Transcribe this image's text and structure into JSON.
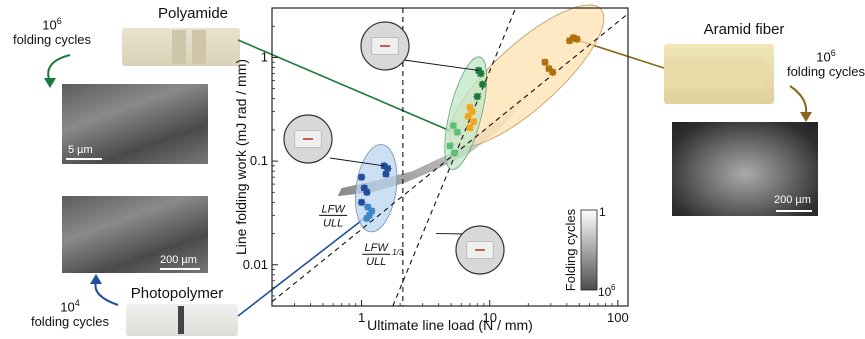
{
  "chart_data": {
    "type": "scatter",
    "xlabel": "Ultimate line load (N / mm)",
    "ylabel": "Line folding work (mJ rad / mm)",
    "xscale": "log",
    "yscale": "log",
    "xlim": [
      0.2,
      120
    ],
    "ylim": [
      0.004,
      3
    ],
    "xticks": [
      1,
      10,
      100
    ],
    "xtick_labels": [
      "1",
      "10",
      "100"
    ],
    "yticks": [
      0.01,
      0.1,
      1
    ],
    "ytick_labels": [
      "0.01",
      "0.1",
      "1"
    ],
    "vline_x": 2.1,
    "guide_lines": [
      {
        "label_num": "LFW",
        "label_den": "ULL",
        "label_exp": "",
        "exponent": 1,
        "through": [
          1.0,
          0.022
        ]
      },
      {
        "label_num": "LFW",
        "label_den": "ULL",
        "label_exp": "1/3",
        "exponent": 3,
        "through": [
          3.0,
          0.02
        ]
      }
    ],
    "series": [
      {
        "color": "#1f4e9c",
        "points": [
          [
            1.5,
            0.09
          ],
          [
            1.6,
            0.085
          ],
          [
            1.55,
            0.075
          ],
          [
            1.0,
            0.07
          ],
          [
            1.05,
            0.055
          ],
          [
            1.1,
            0.05
          ],
          [
            1.0,
            0.04
          ]
        ]
      },
      {
        "color": "#3f86c9",
        "points": [
          [
            1.12,
            0.036
          ],
          [
            1.2,
            0.033
          ],
          [
            1.15,
            0.03
          ],
          [
            1.1,
            0.028
          ]
        ]
      },
      {
        "color": "#1b7a3a",
        "points": [
          [
            8.2,
            0.75
          ],
          [
            8.5,
            0.7
          ],
          [
            8.8,
            0.55
          ],
          [
            8.0,
            0.42
          ]
        ]
      },
      {
        "color": "#5cbf75",
        "points": [
          [
            5.2,
            0.22
          ],
          [
            5.6,
            0.19
          ],
          [
            4.9,
            0.14
          ],
          [
            5.3,
            0.12
          ]
        ]
      },
      {
        "color": "#b0700f",
        "points": [
          [
            45,
            1.55
          ],
          [
            48,
            1.5
          ],
          [
            42,
            1.45
          ],
          [
            27,
            0.9
          ],
          [
            29,
            0.78
          ],
          [
            31,
            0.72
          ]
        ]
      },
      {
        "color": "#f2a51a",
        "points": [
          [
            7.0,
            0.33
          ],
          [
            7.3,
            0.3
          ],
          [
            6.8,
            0.27
          ],
          [
            7.5,
            0.24
          ],
          [
            7.0,
            0.21
          ]
        ]
      }
    ],
    "colorbar": {
      "title": "Folding cycles",
      "top_label": "1",
      "bottom_label": "10",
      "bottom_exp": "6"
    }
  },
  "callouts": {
    "polyamide": {
      "title": "Polyamide",
      "cycles_base": "10",
      "cycles_exp": "6",
      "cycles_text": "folding cycles",
      "scale": "5 µm"
    },
    "photopolymer": {
      "title": "Photopolymer",
      "cycles_base": "10",
      "cycles_exp": "4",
      "cycles_text": "folding cycles",
      "scale": "200 µm"
    },
    "aramid": {
      "title": "Aramid fiber",
      "cycles_base": "10",
      "cycles_exp": "6",
      "cycles_text": "folding cycles",
      "scale": "200 µm"
    }
  },
  "colors": {
    "polyamide": "#1b7a3a",
    "photopolymer": "#1f4e9c",
    "aramid": "#8a6515",
    "green_fill": "#bfe6c7",
    "blue_fill": "#bcd6ef",
    "orange_fill": "#fde2b0"
  }
}
